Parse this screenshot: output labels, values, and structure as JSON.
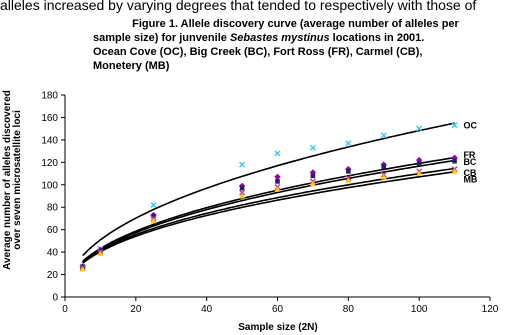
{
  "page": {
    "partial_top_text": "alleles increased by varying degrees that tended to respectively with those of"
  },
  "caption": {
    "line1": "Figure 1.  Allele discovery curve (average number of alleles per",
    "line2_pre": "sample size) for junvenile ",
    "species": "Sebastes mystinus",
    "line2_post": " locations in 2001.",
    "line3": "Ocean Cove (OC), Big Creek (BC), Fort Ross (FR), Carmel (CB),",
    "line4": "Monetery (MB)"
  },
  "chart_data": {
    "type": "scatter",
    "xlabel": "Sample size (2N)",
    "ylabel_line1": "Average number of alleles discovered",
    "ylabel_line2": "over seven microsatellite loci",
    "xlim": [
      0,
      120
    ],
    "ylim": [
      0,
      180
    ],
    "xticks": [
      "0",
      "20",
      "40",
      "60",
      "80",
      "100",
      "120"
    ],
    "yticks": [
      "0",
      "20",
      "40",
      "60",
      "80",
      "100",
      "120",
      "140",
      "160",
      "180"
    ],
    "grid": false,
    "legend": "direct labels at right",
    "series": [
      {
        "name": "OC",
        "color": "#33ccee",
        "marker": "x",
        "x": [
          5,
          10,
          25,
          50,
          60,
          70,
          80,
          90,
          100,
          110
        ],
        "y": [
          27,
          43,
          82,
          118,
          128,
          133,
          137,
          144,
          150,
          153
        ],
        "curve_a": 17.5,
        "curve_b": 0.464
      },
      {
        "name": "FR",
        "color": "#9900aa",
        "marker": "diamond",
        "x": [
          5,
          10,
          25,
          50,
          60,
          70,
          80,
          90,
          100,
          110
        ],
        "y": [
          27,
          42,
          73,
          99,
          107,
          111,
          114,
          118,
          122,
          124
        ],
        "curve_a": 15.7,
        "curve_b": 0.44
      },
      {
        "name": "BC",
        "color": "#222266",
        "marker": "square",
        "x": [
          5,
          10,
          25,
          50,
          60,
          70,
          80,
          90,
          100,
          110
        ],
        "y": [
          27,
          41,
          72,
          97,
          103,
          108,
          112,
          116,
          119,
          121
        ],
        "curve_a": 15.3,
        "curve_b": 0.441
      },
      {
        "name": "CB",
        "color": "#cc3399",
        "marker": "x",
        "x": [
          5,
          10,
          25,
          50,
          60,
          70,
          80,
          90,
          100,
          110
        ],
        "y": [
          26,
          40,
          70,
          93,
          98,
          103,
          106,
          109,
          112,
          114
        ],
        "curve_a": 15.6,
        "curve_b": 0.424
      },
      {
        "name": "MB",
        "color": "#ffcc00",
        "marker": "triangle",
        "x": [
          5,
          10,
          25,
          50,
          60,
          70,
          80,
          90,
          100,
          110
        ],
        "y": [
          25,
          39,
          68,
          90,
          96,
          101,
          104,
          107,
          110,
          112
        ],
        "curve_a": 15.2,
        "curve_b": 0.424
      }
    ]
  }
}
